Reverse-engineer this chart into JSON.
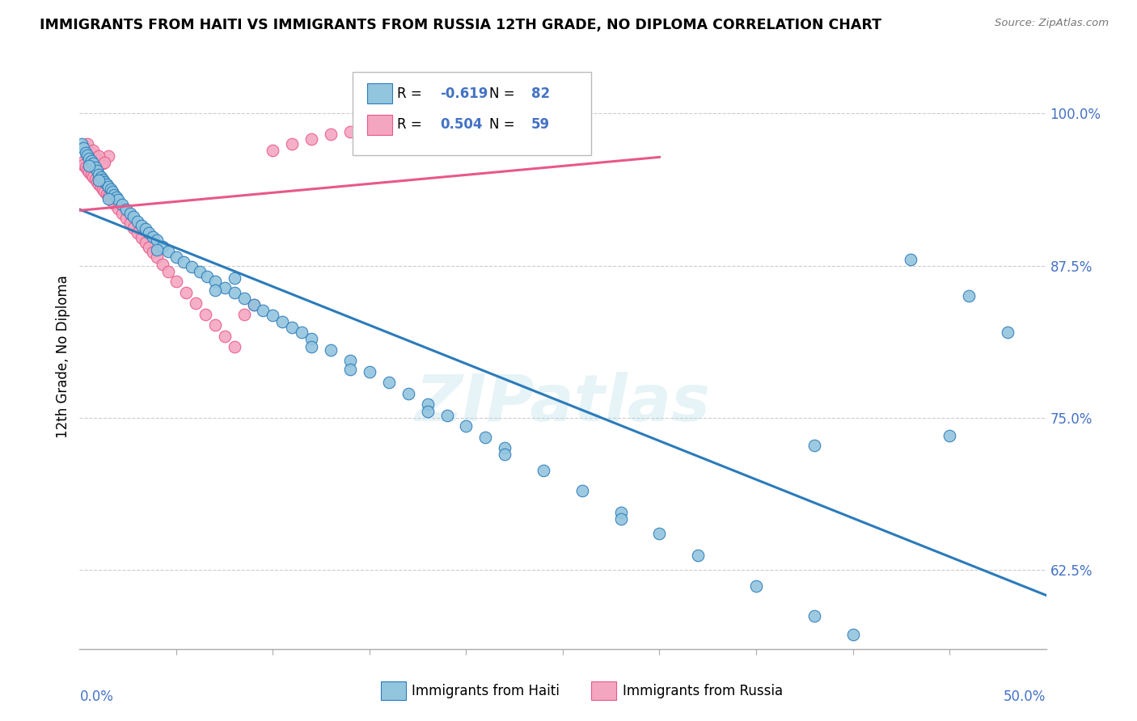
{
  "title": "IMMIGRANTS FROM HAITI VS IMMIGRANTS FROM RUSSIA 12TH GRADE, NO DIPLOMA CORRELATION CHART",
  "source": "Source: ZipAtlas.com",
  "ylabel": "12th Grade, No Diploma",
  "ytick_labels": [
    "100.0%",
    "87.5%",
    "75.0%",
    "62.5%"
  ],
  "ytick_values": [
    1.0,
    0.875,
    0.75,
    0.625
  ],
  "xmin": 0.0,
  "xmax": 0.5,
  "ymin": 0.56,
  "ymax": 1.04,
  "haiti_color": "#92c5de",
  "russia_color": "#f4a6c0",
  "haiti_R": -0.619,
  "haiti_N": 82,
  "russia_R": 0.504,
  "russia_N": 59,
  "haiti_line_color": "#2b7bba",
  "russia_line_color": "#e8588a",
  "watermark": "ZIPatlas",
  "haiti_scatter_x": [
    0.001,
    0.002,
    0.003,
    0.004,
    0.005,
    0.006,
    0.007,
    0.008,
    0.009,
    0.01,
    0.011,
    0.012,
    0.013,
    0.014,
    0.015,
    0.016,
    0.017,
    0.018,
    0.019,
    0.02,
    0.022,
    0.024,
    0.026,
    0.028,
    0.03,
    0.032,
    0.034,
    0.036,
    0.038,
    0.04,
    0.043,
    0.046,
    0.05,
    0.054,
    0.058,
    0.062,
    0.066,
    0.07,
    0.075,
    0.08,
    0.085,
    0.09,
    0.095,
    0.1,
    0.105,
    0.11,
    0.115,
    0.12,
    0.13,
    0.14,
    0.15,
    0.16,
    0.17,
    0.18,
    0.19,
    0.2,
    0.21,
    0.22,
    0.24,
    0.26,
    0.28,
    0.3,
    0.32,
    0.35,
    0.38,
    0.4,
    0.43,
    0.46,
    0.48,
    0.005,
    0.01,
    0.015,
    0.04,
    0.07,
    0.12,
    0.18,
    0.28,
    0.38,
    0.45,
    0.14,
    0.22,
    0.08
  ],
  "haiti_scatter_y": [
    0.975,
    0.972,
    0.968,
    0.966,
    0.963,
    0.961,
    0.959,
    0.956,
    0.953,
    0.95,
    0.948,
    0.946,
    0.944,
    0.942,
    0.94,
    0.938,
    0.936,
    0.933,
    0.931,
    0.929,
    0.925,
    0.921,
    0.918,
    0.915,
    0.911,
    0.908,
    0.905,
    0.902,
    0.899,
    0.896,
    0.891,
    0.887,
    0.882,
    0.878,
    0.874,
    0.87,
    0.866,
    0.862,
    0.857,
    0.853,
    0.848,
    0.843,
    0.838,
    0.834,
    0.829,
    0.824,
    0.82,
    0.815,
    0.806,
    0.797,
    0.788,
    0.779,
    0.77,
    0.761,
    0.752,
    0.743,
    0.734,
    0.725,
    0.707,
    0.69,
    0.672,
    0.655,
    0.637,
    0.612,
    0.587,
    0.572,
    0.88,
    0.85,
    0.82,
    0.957,
    0.945,
    0.93,
    0.888,
    0.855,
    0.808,
    0.755,
    0.667,
    0.727,
    0.735,
    0.79,
    0.72,
    0.865
  ],
  "russia_scatter_x": [
    0.001,
    0.002,
    0.003,
    0.004,
    0.005,
    0.006,
    0.007,
    0.008,
    0.009,
    0.01,
    0.011,
    0.012,
    0.013,
    0.014,
    0.015,
    0.016,
    0.017,
    0.018,
    0.02,
    0.022,
    0.024,
    0.026,
    0.028,
    0.03,
    0.032,
    0.034,
    0.036,
    0.038,
    0.04,
    0.043,
    0.046,
    0.05,
    0.055,
    0.06,
    0.065,
    0.07,
    0.075,
    0.08,
    0.085,
    0.09,
    0.1,
    0.11,
    0.12,
    0.13,
    0.14,
    0.15,
    0.17,
    0.19,
    0.22,
    0.25,
    0.003,
    0.006,
    0.009,
    0.012,
    0.015,
    0.004,
    0.007,
    0.01,
    0.013
  ],
  "russia_scatter_y": [
    0.96,
    0.958,
    0.956,
    0.954,
    0.952,
    0.95,
    0.948,
    0.946,
    0.944,
    0.942,
    0.94,
    0.938,
    0.936,
    0.934,
    0.932,
    0.93,
    0.928,
    0.926,
    0.922,
    0.918,
    0.914,
    0.91,
    0.906,
    0.902,
    0.898,
    0.894,
    0.89,
    0.886,
    0.882,
    0.876,
    0.87,
    0.862,
    0.853,
    0.844,
    0.835,
    0.826,
    0.817,
    0.808,
    0.835,
    0.843,
    0.97,
    0.975,
    0.979,
    0.983,
    0.985,
    0.987,
    0.991,
    0.994,
    0.997,
    1.0,
    0.972,
    0.968,
    0.963,
    0.959,
    0.965,
    0.975,
    0.97,
    0.965,
    0.96
  ]
}
